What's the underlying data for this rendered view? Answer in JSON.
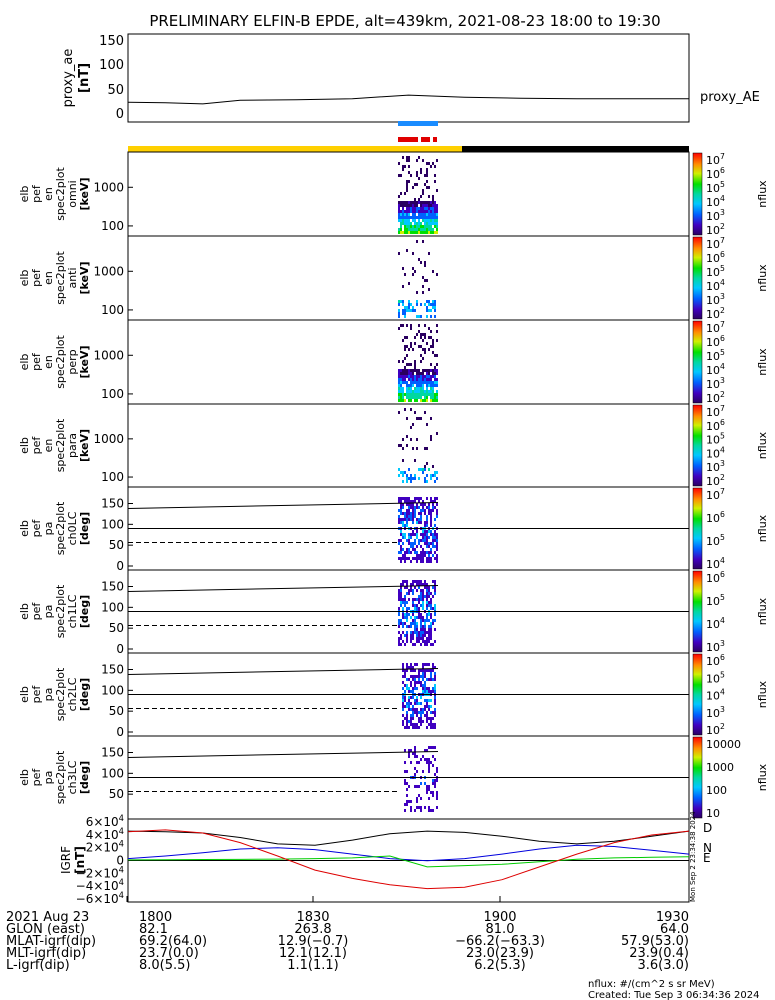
{
  "title": "PRELIMINARY ELFIN-B EPDE, alt=439km, 2021-08-23 18:00 to 19:30",
  "chart_data": [
    {
      "id": "proxy_ae",
      "type": "line",
      "ylabel": [
        "proxy_ae",
        "[nT]"
      ],
      "yticks": [
        "150",
        "100",
        "50",
        "0"
      ],
      "ylim": [
        -10,
        160
      ],
      "legend": "proxy_AE",
      "x_hours": [
        0,
        0.1,
        0.2,
        0.3,
        0.45,
        0.6,
        0.75,
        0.9,
        1.05,
        1.2,
        1.35,
        1.5
      ],
      "values": [
        28,
        27,
        25,
        32,
        33,
        35,
        42,
        38,
        36,
        35,
        35,
        35
      ]
    },
    {
      "id": "spec_omni",
      "type": "heatmap",
      "ylabel": [
        "elb",
        "pef",
        "en",
        "spec2plot",
        "omni",
        "[keV]"
      ],
      "yticks": [
        "1000",
        "100"
      ],
      "colorbar": {
        "label": "nflux",
        "ticks": [
          "10^7",
          "10^6",
          "10^5",
          "10^4",
          "10^3",
          "10^2"
        ]
      }
    },
    {
      "id": "spec_anti",
      "type": "heatmap",
      "ylabel": [
        "elb",
        "pef",
        "en",
        "spec2plot",
        "anti",
        "[keV]"
      ],
      "yticks": [
        "1000",
        "100"
      ],
      "colorbar": {
        "label": "nflux",
        "ticks": [
          "10^7",
          "10^6",
          "10^5",
          "10^4",
          "10^3",
          "10^2"
        ]
      }
    },
    {
      "id": "spec_perp",
      "type": "heatmap",
      "ylabel": [
        "elb",
        "pef",
        "en",
        "spec2plot",
        "perp",
        "[keV]"
      ],
      "yticks": [
        "1000",
        "100"
      ],
      "colorbar": {
        "label": "nflux",
        "ticks": [
          "10^7",
          "10^6",
          "10^5",
          "10^4",
          "10^3",
          "10^2"
        ]
      }
    },
    {
      "id": "spec_para",
      "type": "heatmap",
      "ylabel": [
        "elb",
        "pef",
        "en",
        "spec2plot",
        "para",
        "[keV]"
      ],
      "yticks": [
        "1000",
        "100"
      ],
      "colorbar": {
        "label": "nflux",
        "ticks": [
          "10^7",
          "10^6",
          "10^5",
          "10^4",
          "10^3",
          "10^2"
        ]
      }
    },
    {
      "id": "pa_ch0",
      "type": "heatmap",
      "ylabel": [
        "elb",
        "pef",
        "pa",
        "spec2plot",
        "ch0LC",
        "[deg]"
      ],
      "yticks": [
        "150",
        "100",
        "50",
        "0"
      ],
      "colorbar": {
        "label": "nflux",
        "ticks": [
          "10^7",
          "10^6",
          "10^5",
          "10^4"
        ]
      }
    },
    {
      "id": "pa_ch1",
      "type": "heatmap",
      "ylabel": [
        "elb",
        "pef",
        "pa",
        "spec2plot",
        "ch1LC",
        "[deg]"
      ],
      "yticks": [
        "150",
        "100",
        "50",
        "0"
      ],
      "colorbar": {
        "label": "nflux",
        "ticks": [
          "10^6",
          "10^5",
          "10^4",
          "10^3"
        ]
      }
    },
    {
      "id": "pa_ch2",
      "type": "heatmap",
      "ylabel": [
        "elb",
        "pef",
        "pa",
        "spec2plot",
        "ch2LC",
        "[deg]"
      ],
      "yticks": [
        "150",
        "100",
        "50",
        "0"
      ],
      "colorbar": {
        "label": "nflux",
        "ticks": [
          "10^6",
          "10^5",
          "10^4",
          "10^3",
          "10^2"
        ]
      }
    },
    {
      "id": "pa_ch3",
      "type": "heatmap",
      "ylabel": [
        "elb",
        "pef",
        "pa",
        "spec2plot",
        "ch3LC",
        "[deg]"
      ],
      "yticks": [
        "150",
        "100",
        "50"
      ],
      "colorbar": {
        "label": "nflux",
        "ticks": [
          "10000",
          "1000",
          "100",
          "10"
        ]
      }
    },
    {
      "id": "igrf",
      "type": "line",
      "ylabel": [
        "IGRF",
        "[nT]"
      ],
      "yticks": [
        "6×10^4",
        "4×10^4",
        "2×10^4",
        "0",
        "−2×10^4",
        "−4×10^4",
        "−6×10^4"
      ],
      "ylim": [
        -65000,
        65000
      ],
      "legend": [
        "D",
        "N",
        "E"
      ],
      "x_hours": [
        0,
        0.1,
        0.2,
        0.3,
        0.4,
        0.5,
        0.6,
        0.7,
        0.8,
        0.9,
        1.0,
        1.1,
        1.2,
        1.3,
        1.4,
        1.5
      ],
      "series": [
        {
          "name": "D",
          "color": "#000000",
          "values": [
            46000,
            45000,
            43000,
            36000,
            26000,
            24000,
            32000,
            42000,
            46000,
            44000,
            38000,
            30000,
            26000,
            30000,
            38000,
            46000
          ]
        },
        {
          "name": "N",
          "color": "#0000dd",
          "values": [
            3000,
            7000,
            12000,
            18000,
            20000,
            17000,
            10000,
            3000,
            -500,
            3000,
            10000,
            18000,
            24000,
            22000,
            16000,
            10000
          ]
        },
        {
          "name": "E",
          "color": "#00cc00",
          "values": [
            1000,
            1200,
            1500,
            1800,
            2200,
            3000,
            4000,
            7000,
            -10000,
            -8000,
            -6000,
            -2000,
            2000,
            4000,
            5000,
            6000
          ]
        },
        {
          "name": "",
          "color": "#dd0000",
          "values": [
            45000,
            48000,
            43000,
            28000,
            7000,
            -15000,
            -28000,
            -38000,
            -44000,
            -42000,
            -30000,
            -10000,
            10000,
            28000,
            40000,
            46000
          ]
        }
      ]
    }
  ],
  "xaxis": {
    "rows": [
      {
        "label": "2021 Aug 23",
        "values": [
          "1800",
          "1830",
          "1900",
          "1930"
        ]
      },
      {
        "label": "GLON (east)",
        "values": [
          "82.1",
          "263.8",
          "81.0",
          "64.0"
        ]
      },
      {
        "label": "MLAT-igrf(dip)",
        "values": [
          "69.2(64.0)",
          "12.9(−0.7)",
          "−66.2(−63.3)",
          "57.9(53.0)"
        ]
      },
      {
        "label": "MLT-igrf(dip)",
        "values": [
          "23.7(0.0)",
          "12.1(12.1)",
          "23.0(23.9)",
          "23.9(0.4)"
        ]
      },
      {
        "label": "L-igrf(dip)",
        "values": [
          "8.0(5.5)",
          "1.1(1.1)",
          "6.2(5.3)",
          "3.6(3.0)"
        ]
      }
    ]
  },
  "footer": {
    "units": "nflux: #/(cm^2 s sr MeV)",
    "created": "Created: Tue Sep  3 06:34:36 2024",
    "side_stamp": "Mon Sep  2 23:34:38 2024"
  }
}
